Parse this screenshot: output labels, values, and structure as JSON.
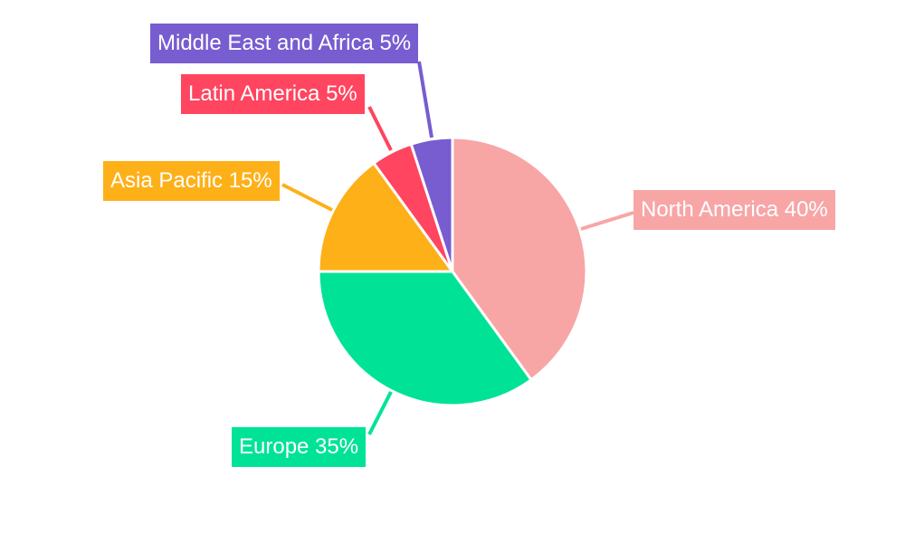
{
  "chart_data": {
    "type": "pie",
    "start_angle": "top, clockwise",
    "slices": [
      {
        "label": "North America",
        "value": 40,
        "text": "North America 40%",
        "color": "#F8A5A6"
      },
      {
        "label": "Europe",
        "value": 35,
        "text": "Europe 35%",
        "color": "#00E396"
      },
      {
        "label": "Asia Pacific",
        "value": 15,
        "text": "Asia Pacific 15%",
        "color": "#FEB019"
      },
      {
        "label": "Latin America",
        "value": 5,
        "text": "Latin America 5%",
        "color": "#FF4560"
      },
      {
        "label": "Middle East and Africa",
        "value": 5,
        "text": "Middle East and Africa 5%",
        "color": "#775DD0"
      }
    ]
  }
}
